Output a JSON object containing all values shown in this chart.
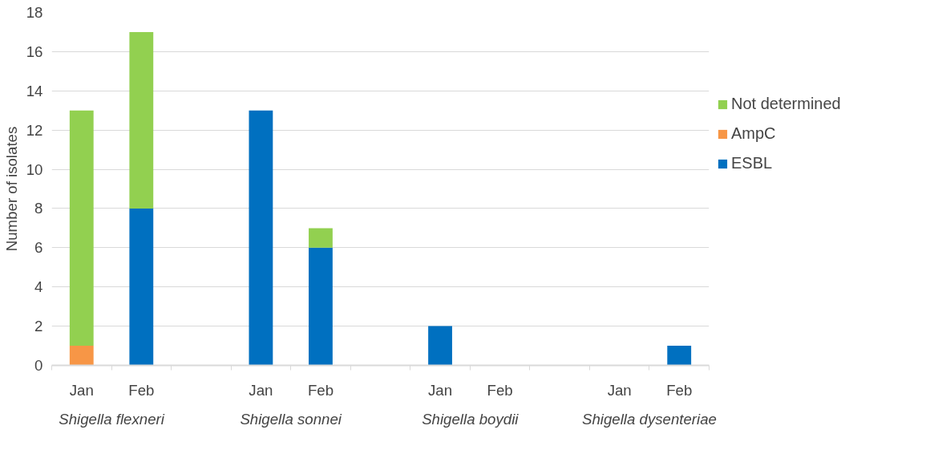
{
  "chart_data": {
    "type": "bar",
    "stacked": true,
    "ylabel": "Number of isolates",
    "categories": [
      "Jan",
      "Feb",
      null,
      "Jan",
      "Feb",
      null,
      "Jan",
      "Feb",
      null,
      "Jan",
      "Feb"
    ],
    "series": [
      {
        "name": "ESBL",
        "color": "#0070c0",
        "values": [
          0,
          8,
          null,
          13,
          6,
          null,
          2,
          0,
          null,
          0,
          1
        ]
      },
      {
        "name": "AmpC",
        "color": "#f79646",
        "values": [
          1,
          0,
          null,
          0,
          0,
          null,
          0,
          0,
          null,
          0,
          0
        ]
      },
      {
        "name": "Not determined",
        "color": "#92d050",
        "values": [
          12,
          9,
          null,
          0,
          1,
          null,
          0,
          0,
          null,
          0,
          0
        ]
      }
    ],
    "annotations": [
      "Shigella flexneri",
      "Shigella sonnei",
      "Shigella boydii",
      "Shigella dysenteriae"
    ],
    "ylim": [
      0,
      18
    ],
    "yticks": [
      0,
      2,
      4,
      6,
      8,
      10,
      12,
      14,
      16,
      18
    ],
    "grid": "y",
    "legend": "right"
  }
}
